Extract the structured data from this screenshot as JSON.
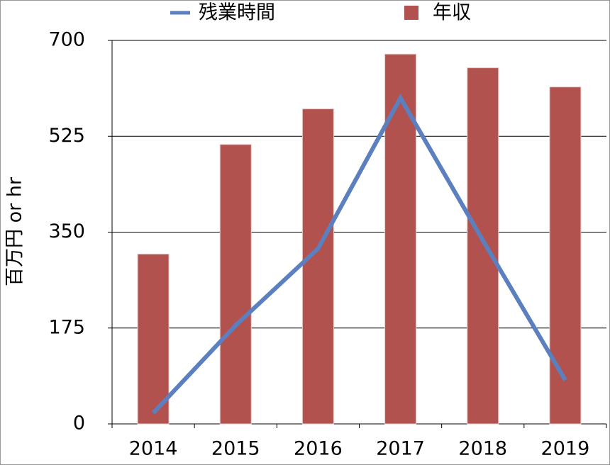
{
  "chart_data": {
    "type": "bar_line",
    "y_label": "百万円 or hr",
    "categories": [
      "2014",
      "2015",
      "2016",
      "2017",
      "2018",
      "2019"
    ],
    "series": [
      {
        "name": "残業時間",
        "type": "line",
        "color": "#5b7fbf",
        "values": [
          20,
          180,
          320,
          595,
          335,
          80
        ]
      },
      {
        "name": "年収",
        "type": "bar",
        "color": "#b2524f",
        "values": [
          310,
          510,
          575,
          675,
          650,
          615
        ]
      }
    ],
    "ylim": [
      0,
      700
    ],
    "yticks": [
      0,
      175,
      350,
      525,
      700
    ],
    "grid": true
  }
}
